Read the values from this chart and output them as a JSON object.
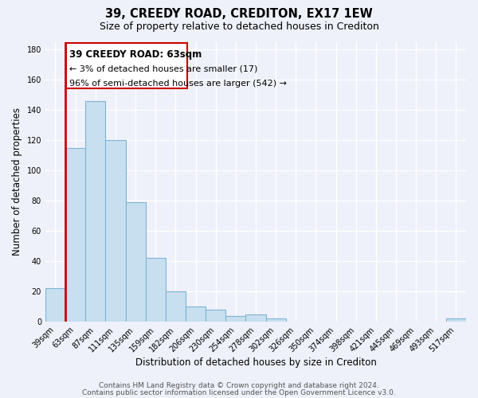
{
  "title": "39, CREEDY ROAD, CREDITON, EX17 1EW",
  "subtitle": "Size of property relative to detached houses in Crediton",
  "xlabel": "Distribution of detached houses by size in Crediton",
  "ylabel": "Number of detached properties",
  "bar_labels": [
    "39sqm",
    "63sqm",
    "87sqm",
    "111sqm",
    "135sqm",
    "159sqm",
    "182sqm",
    "206sqm",
    "230sqm",
    "254sqm",
    "278sqm",
    "302sqm",
    "326sqm",
    "350sqm",
    "374sqm",
    "398sqm",
    "421sqm",
    "445sqm",
    "469sqm",
    "493sqm",
    "517sqm"
  ],
  "bar_values": [
    22,
    115,
    146,
    120,
    79,
    42,
    20,
    10,
    8,
    4,
    5,
    2,
    0,
    0,
    0,
    0,
    0,
    0,
    0,
    0,
    2
  ],
  "bar_color": "#c8dff0",
  "bar_edge_color": "#7fb4d4",
  "highlight_bar_index": 1,
  "highlight_edge_color": "#cc0000",
  "annotation_title": "39 CREEDY ROAD: 63sqm",
  "annotation_line1": "← 3% of detached houses are smaller (17)",
  "annotation_line2": "96% of semi-detached houses are larger (542) →",
  "annotation_box_color": "white",
  "annotation_box_edge_color": "#cc0000",
  "ylim": [
    0,
    185
  ],
  "yticks": [
    0,
    20,
    40,
    60,
    80,
    100,
    120,
    140,
    160,
    180
  ],
  "footer_line1": "Contains HM Land Registry data © Crown copyright and database right 2024.",
  "footer_line2": "Contains public sector information licensed under the Open Government Licence v3.0.",
  "background_color": "#eef1fa",
  "grid_color": "#ffffff",
  "title_fontsize": 10.5,
  "subtitle_fontsize": 9,
  "axis_label_fontsize": 8.5,
  "tick_fontsize": 7,
  "footer_fontsize": 6.5
}
